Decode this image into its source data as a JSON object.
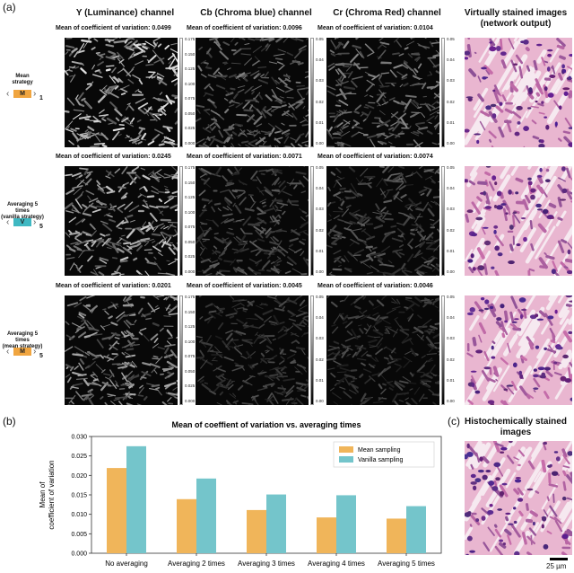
{
  "panel_labels": {
    "a": "(a)",
    "b": "(b)",
    "c": "(c)"
  },
  "columns": [
    "Y (Luminance) channel",
    "Cb (Chroma blue) channel",
    "Cr (Chroma Red) channel",
    "Virtually stained images\n(network output)"
  ],
  "rows": [
    {
      "label": "Mean\nstrategy",
      "badge": "M",
      "sub": "1",
      "badge_color": "#f0a540",
      "cv": [
        "Mean of coefficient of variation: 0.0499",
        "Mean of coefficient of variation: 0.0096",
        "Mean of coefficient of variation: 0.0104"
      ],
      "ticks": [
        [
          "0.175",
          "0.150",
          "0.125",
          "0.100",
          "0.075",
          "0.050",
          "0.025",
          "0.000"
        ],
        [
          "0.05",
          "0.04",
          "0.03",
          "0.02",
          "0.01",
          "0.00"
        ],
        [
          "0.05",
          "0.04",
          "0.03",
          "0.02",
          "0.01",
          "0.00"
        ]
      ]
    },
    {
      "label": "Averaging 5 times\n(vanilla strategy)",
      "badge": "V",
      "sub": "5",
      "badge_color": "#3fb8c2",
      "cv": [
        "Mean of coefficient of variation: 0.0245",
        "Mean of coefficient of variation: 0.0071",
        "Mean of coefficient of variation: 0.0074"
      ],
      "ticks": [
        [
          "0.175",
          "0.150",
          "0.125",
          "0.100",
          "0.075",
          "0.050",
          "0.025",
          "0.000"
        ],
        [
          "0.05",
          "0.04",
          "0.03",
          "0.02",
          "0.01",
          "0.00"
        ],
        [
          "0.05",
          "0.04",
          "0.03",
          "0.02",
          "0.01",
          "0.00"
        ]
      ]
    },
    {
      "label": "Averaging 5 times\n(mean strategy)",
      "badge": "M",
      "sub": "5",
      "badge_color": "#f0a540",
      "cv": [
        "Mean of coefficient of variation: 0.0201",
        "Mean of coefficient of variation: 0.0045",
        "Mean of coefficient of variation: 0.0046"
      ],
      "ticks": [
        [
          "0.175",
          "0.150",
          "0.125",
          "0.100",
          "0.075",
          "0.050",
          "0.025",
          "0.000"
        ],
        [
          "0.05",
          "0.04",
          "0.03",
          "0.02",
          "0.01",
          "0.00"
        ],
        [
          "0.05",
          "0.04",
          "0.03",
          "0.02",
          "0.01",
          "0.00"
        ]
      ]
    }
  ],
  "panel_c": {
    "title": "Histochemically stained\nimages",
    "scale_bar": "25 µm"
  },
  "chart_data": {
    "type": "bar",
    "title": "Mean of coeffient of variation vs. averaging times",
    "xlabel": "",
    "ylabel": "Mean of\ncoefficient of variation",
    "categories": [
      "No averaging",
      "Averaging 2 times",
      "Averaging 3 times",
      "Averaging 4 times",
      "Averaging 5 times"
    ],
    "series": [
      {
        "name": "Mean sampling",
        "color": "#f0b55a",
        "values": [
          0.0219,
          0.0139,
          0.0111,
          0.0092,
          0.0089
        ]
      },
      {
        "name": "Vanilla sampling",
        "color": "#74c5cb",
        "values": [
          0.0275,
          0.0192,
          0.0151,
          0.0149,
          0.0121
        ]
      }
    ],
    "ylim": [
      0,
      0.03
    ],
    "yticks": [
      "0.000",
      "0.005",
      "0.010",
      "0.015",
      "0.020",
      "0.025",
      "0.030"
    ],
    "legend": "top-right",
    "grid": false
  }
}
